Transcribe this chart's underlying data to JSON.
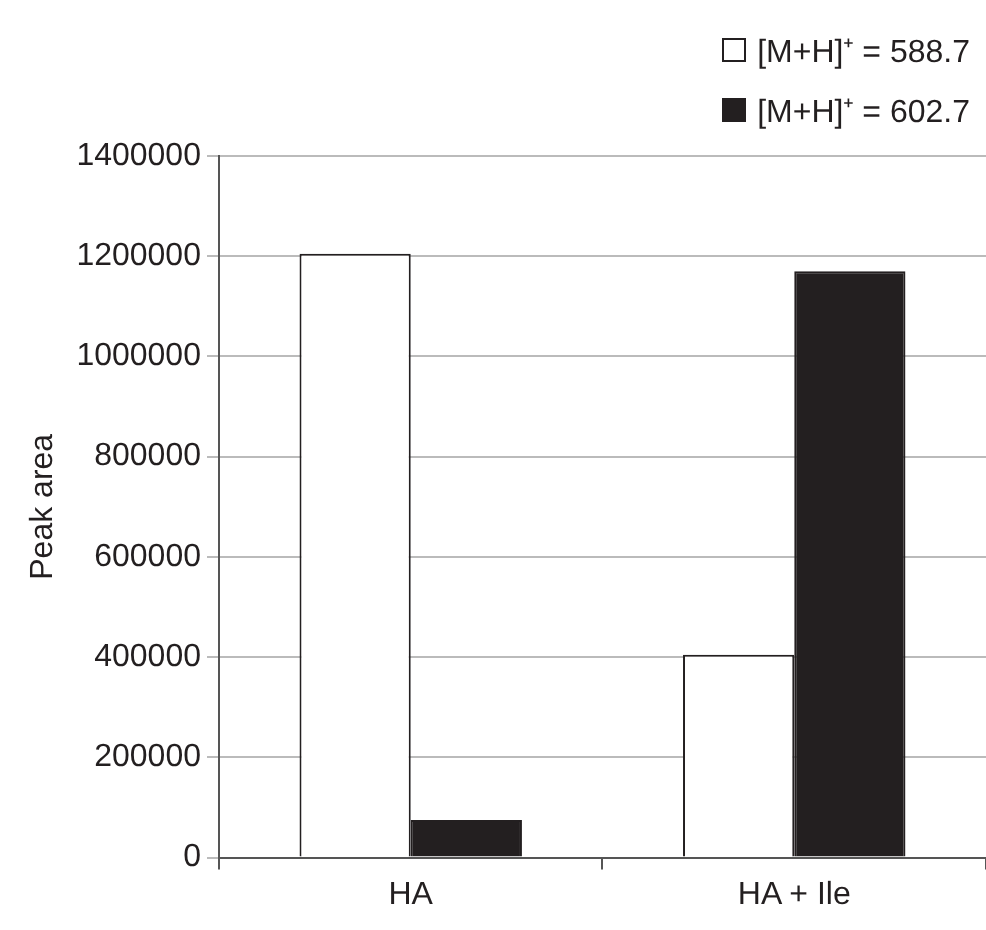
{
  "chart_data": {
    "type": "bar",
    "ylabel": "Peak area",
    "categories": [
      "HA",
      "HA + Ile"
    ],
    "series": [
      {
        "name": "[M+H]⁺ = 588.7",
        "color": "#ffffff",
        "values": [
          1205000,
          405000
        ]
      },
      {
        "name": "[M+H]⁺ = 602.7",
        "color": "#231f20",
        "values": [
          75000,
          1170000
        ]
      }
    ],
    "ylim": [
      0,
      1400000
    ],
    "yticks": [
      0,
      200000,
      400000,
      600000,
      800000,
      1000000,
      1200000,
      1400000
    ],
    "grid": "y",
    "legend": "top right"
  }
}
